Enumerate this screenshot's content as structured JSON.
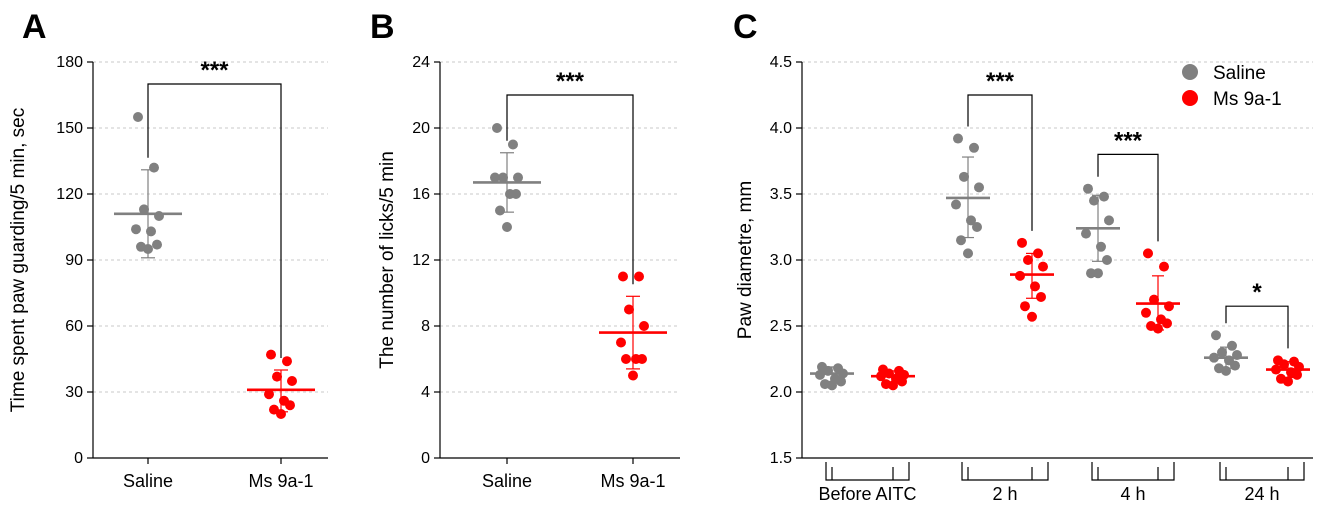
{
  "colors": {
    "saline": "#808080",
    "ms9a1": "#ff0000"
  },
  "chart_data": [
    {
      "type": "scatter",
      "panel": "A",
      "ylabel": "Time spent paw guarding/5 min, sec",
      "ylim": [
        0,
        180
      ],
      "yticks": [
        0,
        30,
        60,
        90,
        120,
        150,
        180
      ],
      "grid": true,
      "categories": [
        "Saline",
        "Ms 9a-1"
      ],
      "series": [
        {
          "group": "Saline",
          "color": "saline",
          "mean": 111,
          "sd_low": 91,
          "sd_high": 131,
          "points": [
            155,
            132,
            113,
            110,
            104,
            103,
            97,
            96,
            95
          ]
        },
        {
          "group": "Ms 9a-1",
          "color": "ms9a1",
          "mean": 31,
          "sd_low": 21,
          "sd_high": 40,
          "points": [
            47,
            44,
            37,
            35,
            29,
            26,
            24,
            22,
            20
          ]
        }
      ],
      "significance": [
        {
          "from": 0,
          "to": 1,
          "label": "***",
          "y": 170
        }
      ]
    },
    {
      "type": "scatter",
      "panel": "B",
      "ylabel": "The number of licks/5 min",
      "ylim": [
        0,
        24
      ],
      "yticks": [
        0,
        4,
        8,
        12,
        16,
        20,
        24
      ],
      "grid": true,
      "categories": [
        "Saline",
        "Ms 9a-1"
      ],
      "series": [
        {
          "group": "Saline",
          "color": "saline",
          "mean": 16.7,
          "sd_low": 14.9,
          "sd_high": 18.5,
          "points": [
            20,
            19,
            17,
            17,
            17,
            16,
            16,
            15,
            14
          ]
        },
        {
          "group": "Ms 9a-1",
          "color": "ms9a1",
          "mean": 7.6,
          "sd_low": 5.4,
          "sd_high": 9.8,
          "points": [
            11,
            11,
            9,
            8,
            7,
            6,
            6,
            6,
            5
          ]
        }
      ],
      "significance": [
        {
          "from": 0,
          "to": 1,
          "label": "***",
          "y": 22
        }
      ]
    },
    {
      "type": "scatter",
      "panel": "C",
      "ylabel": "Paw diametre, mm",
      "ylim": [
        1.5,
        4.5
      ],
      "yticks": [
        "1.5",
        "2.0",
        "2.5",
        "3.0",
        "3.5",
        "4.0",
        "4.5"
      ],
      "grid": true,
      "legend_position": "top-right",
      "legend": [
        {
          "label": "Saline",
          "color": "saline"
        },
        {
          "label": "Ms 9a-1",
          "color": "ms9a1"
        }
      ],
      "categories": [
        "Before AITC",
        "2 h",
        "4 h",
        "24 h"
      ],
      "groups": [
        [
          {
            "group": "Saline",
            "color": "saline",
            "mean": 2.14,
            "sd_low": 2.08,
            "sd_high": 2.19,
            "points": [
              2.19,
              2.18,
              2.16,
              2.14,
              2.13,
              2.1,
              2.08,
              2.06,
              2.05
            ]
          },
          {
            "group": "Ms 9a-1",
            "color": "ms9a1",
            "mean": 2.12,
            "sd_low": 2.07,
            "sd_high": 2.16,
            "points": [
              2.17,
              2.16,
              2.14,
              2.13,
              2.12,
              2.1,
              2.08,
              2.06,
              2.05
            ]
          }
        ],
        [
          {
            "group": "Saline",
            "color": "saline",
            "mean": 3.47,
            "sd_low": 3.17,
            "sd_high": 3.78,
            "points": [
              3.92,
              3.85,
              3.63,
              3.55,
              3.42,
              3.3,
              3.25,
              3.15,
              3.05
            ]
          },
          {
            "group": "Ms 9a-1",
            "color": "ms9a1",
            "mean": 2.89,
            "sd_low": 2.71,
            "sd_high": 3.05,
            "points": [
              3.13,
              3.05,
              3.0,
              2.95,
              2.88,
              2.8,
              2.72,
              2.65,
              2.57
            ]
          }
        ],
        [
          {
            "group": "Saline",
            "color": "saline",
            "mean": 3.24,
            "sd_low": 2.99,
            "sd_high": 3.49,
            "points": [
              3.54,
              3.48,
              3.45,
              3.3,
              3.2,
              3.1,
              3.0,
              2.9,
              2.9
            ]
          },
          {
            "group": "Ms 9a-1",
            "color": "ms9a1",
            "mean": 2.67,
            "sd_low": 2.47,
            "sd_high": 2.88,
            "points": [
              3.05,
              2.95,
              2.7,
              2.65,
              2.6,
              2.55,
              2.52,
              2.5,
              2.48
            ]
          }
        ],
        [
          {
            "group": "Saline",
            "color": "saline",
            "mean": 2.26,
            "sd_low": 2.18,
            "sd_high": 2.34,
            "points": [
              2.43,
              2.35,
              2.3,
              2.28,
              2.26,
              2.24,
              2.2,
              2.18,
              2.16
            ]
          },
          {
            "group": "Ms 9a-1",
            "color": "ms9a1",
            "mean": 2.17,
            "sd_low": 2.11,
            "sd_high": 2.23,
            "points": [
              2.24,
              2.23,
              2.21,
              2.19,
              2.17,
              2.15,
              2.13,
              2.1,
              2.08
            ]
          }
        ]
      ],
      "significance": [
        {
          "group": 1,
          "label": "***",
          "y": 4.25
        },
        {
          "group": 2,
          "label": "***",
          "y": 3.8
        },
        {
          "group": 3,
          "label": "*",
          "y": 2.65
        }
      ]
    }
  ]
}
